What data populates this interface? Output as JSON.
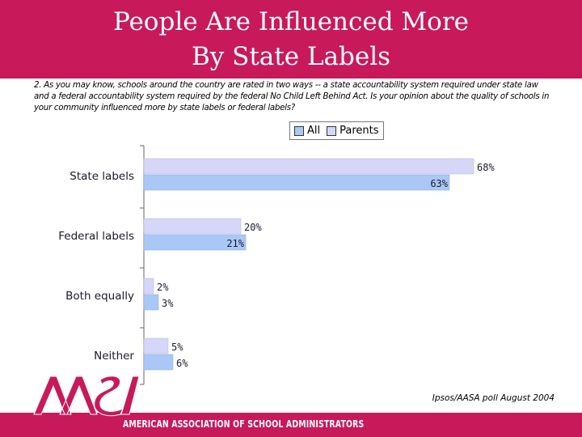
{
  "slide": {
    "title_line1": "People Are Influenced More",
    "title_line2": "By State Labels",
    "question": "2. As you may know, schools around the country are rated in two ways -- a state accountability system required under state law and a federal accountability system required by the federal No Child Left Behind Act.  Is your opinion about the quality of schools in your community influenced more by state labels or federal labels?",
    "source": "Ipsos/AASA poll August 2004",
    "footer": "AMERICAN ASSOCIATION OF SCHOOL ADMINISTRATORS",
    "logo_text": "AASA"
  },
  "colors": {
    "brand": "#c8195a",
    "all": "#aac8f5",
    "parents": "#d6d6f8"
  },
  "chart_data": {
    "type": "bar",
    "orientation": "horizontal",
    "categories": [
      "State labels",
      "Federal labels",
      "Both equally",
      "Neither"
    ],
    "series": [
      {
        "name": "Parents",
        "values": [
          68,
          20,
          2,
          5
        ],
        "labels": [
          "68%",
          "20%",
          "2%",
          "5%"
        ]
      },
      {
        "name": "All",
        "values": [
          63,
          21,
          3,
          6
        ],
        "labels": [
          "63%",
          "21%",
          "3%",
          "6%"
        ]
      }
    ],
    "legend": {
      "position": "top",
      "order": [
        "All",
        "Parents"
      ]
    },
    "xlim": [
      0,
      100
    ],
    "grid": false
  }
}
